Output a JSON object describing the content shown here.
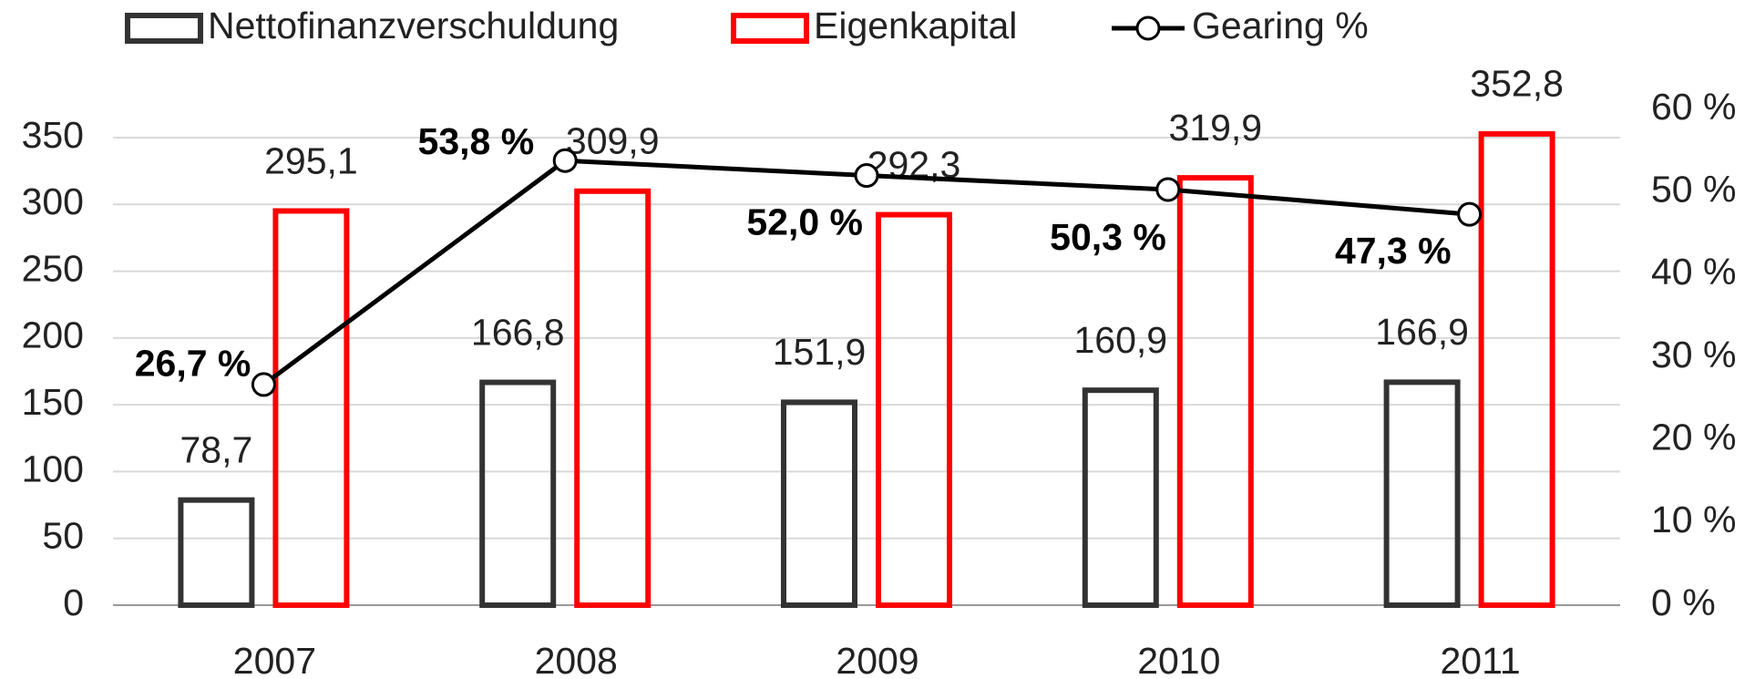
{
  "chart_data": {
    "type": "bar",
    "categories": [
      "2007",
      "2008",
      "2009",
      "2010",
      "2011"
    ],
    "series": [
      {
        "name": "Nettofinanzverschuldung",
        "color": "#333333",
        "values": [
          78.7,
          166.8,
          151.9,
          160.9,
          166.9
        ],
        "value_labels": [
          "78,7",
          "166,8",
          "151,9",
          "160,9",
          "166,9"
        ]
      },
      {
        "name": "Eigenkapital",
        "color": "#ff0000",
        "values": [
          295.1,
          309.9,
          292.3,
          319.9,
          352.8
        ],
        "value_labels": [
          "295,1",
          "309,9",
          "292,3",
          "319,9",
          "352,8"
        ]
      },
      {
        "name": "Gearing %",
        "type": "line",
        "axis": "y2",
        "color": "#000000",
        "values": [
          26.7,
          53.8,
          52.0,
          50.3,
          47.3
        ],
        "value_labels": [
          "26,7 %",
          "53,8 %",
          "52,0 %",
          "50,3 %",
          "47,3 %"
        ]
      }
    ],
    "ylim": [
      0,
      350
    ],
    "yticks": [
      0,
      50,
      100,
      150,
      200,
      250,
      300,
      350
    ],
    "y2lim": [
      0,
      60
    ],
    "y2ticks": [
      {
        "value": 0,
        "label": "0 %"
      },
      {
        "value": 10,
        "label": "10 %"
      },
      {
        "value": 20,
        "label": "20 %"
      },
      {
        "value": 30,
        "label": "30 %"
      },
      {
        "value": 40,
        "label": "40 %"
      },
      {
        "value": 50,
        "label": "50 %"
      },
      {
        "value": 60,
        "label": "60 %"
      }
    ],
    "grid": true,
    "legend": "top"
  }
}
